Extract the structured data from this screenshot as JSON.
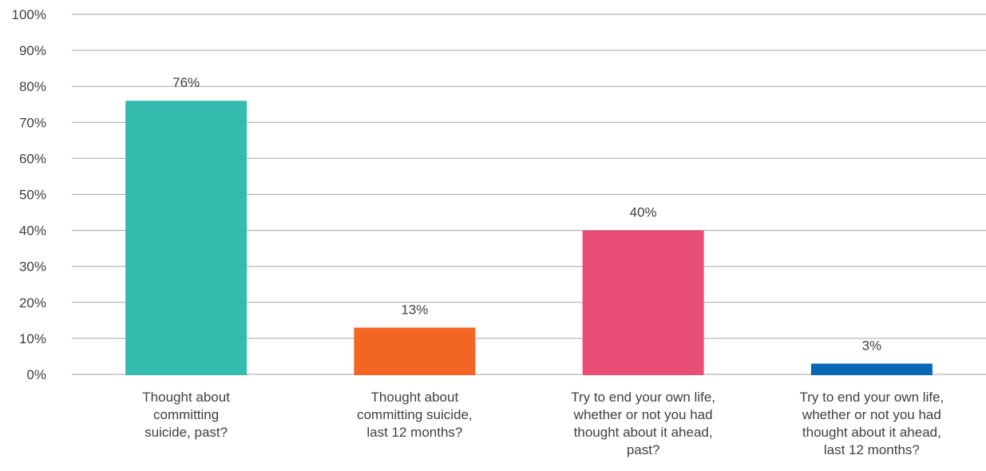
{
  "chart_data": {
    "type": "bar",
    "categories": [
      [
        "Thought about",
        "committing",
        "suicide, past?"
      ],
      [
        "Thought about",
        "committing suicide,",
        "last 12 months?"
      ],
      [
        "Try to end your own life,",
        "whether or not you had",
        "thought about it ahead,",
        "past?"
      ],
      [
        "Try to end your own life,",
        "whether or not you had",
        "thought about it ahead,",
        "last 12 months?"
      ]
    ],
    "values": [
      76,
      13,
      40,
      3
    ],
    "data_labels": [
      "76%",
      "13%",
      "40%",
      "3%"
    ],
    "colors": [
      "#33bbad",
      "#f26522",
      "#e94e77",
      "#0868b3"
    ],
    "ylim": [
      0,
      100
    ],
    "y_ticks": [
      0,
      10,
      20,
      30,
      40,
      50,
      60,
      70,
      80,
      90,
      100
    ],
    "y_tick_labels": [
      "0%",
      "10%",
      "20%",
      "30%",
      "40%",
      "50%",
      "60%",
      "70%",
      "80%",
      "90%",
      "100%"
    ],
    "grid": true,
    "gridline_color": "#a6a6a6",
    "title": "",
    "xlabel": "",
    "ylabel": ""
  }
}
